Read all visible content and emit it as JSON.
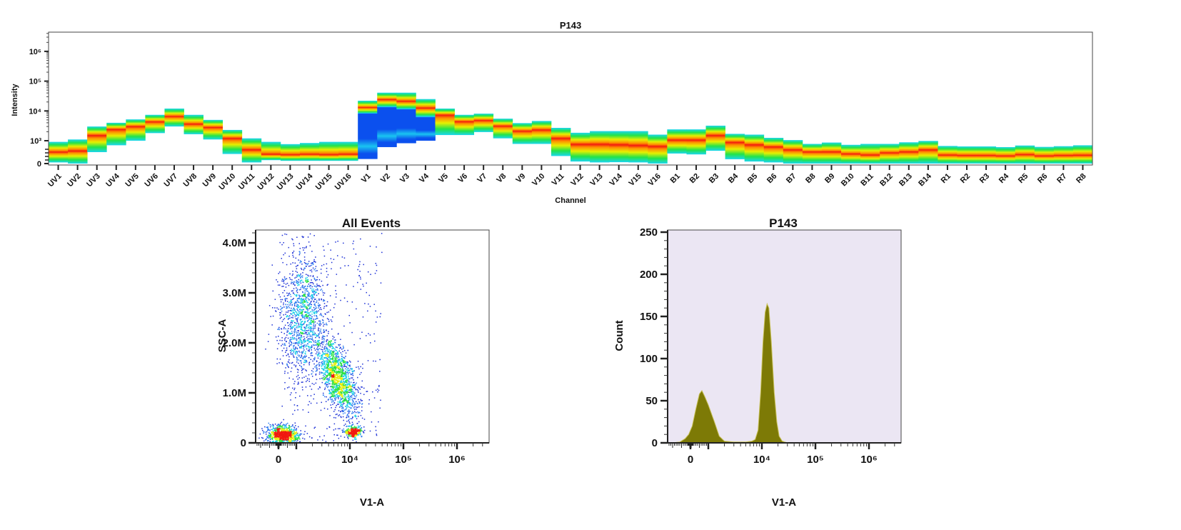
{
  "chart_data": [
    {
      "type": "heatmap",
      "title": "P143",
      "xlabel": "Channel",
      "ylabel": "Intensity",
      "y_scale": "biexponential",
      "y_ticks": [
        {
          "label": "0",
          "value": 0
        },
        {
          "label": "10³",
          "value": 1000
        },
        {
          "label": "10⁴",
          "value": 10000
        },
        {
          "label": "10⁵",
          "value": 100000
        },
        {
          "label": "10⁶",
          "value": 1000000
        }
      ],
      "colors": {
        "edge": "#1ad6f0",
        "green": "#22e34a",
        "yellow": "#e6f000",
        "orange": "#ff8c00",
        "red": "#f21a0f",
        "dim": "#0b50ee"
      },
      "channels": [
        {
          "name": "UV1",
          "min": 50,
          "peak": 500,
          "max": 950
        },
        {
          "name": "UV2",
          "min": 0,
          "peak": 550,
          "max": 1100
        },
        {
          "name": "UV3",
          "min": 500,
          "peak": 1500,
          "max": 3000
        },
        {
          "name": "UV4",
          "min": 800,
          "peak": 2400,
          "max": 4000
        },
        {
          "name": "UV5",
          "min": 1000,
          "peak": 3000,
          "max": 5200
        },
        {
          "name": "UV6",
          "min": 1800,
          "peak": 4300,
          "max": 7400
        },
        {
          "name": "UV7",
          "min": 3000,
          "peak": 6500,
          "max": 12000
        },
        {
          "name": "UV8",
          "min": 1650,
          "peak": 3600,
          "max": 7400
        },
        {
          "name": "UV9",
          "min": 1100,
          "peak": 2800,
          "max": 5000
        },
        {
          "name": "UV10",
          "min": 420,
          "peak": 1200,
          "max": 2300
        },
        {
          "name": "UV11",
          "min": 50,
          "peak": 600,
          "max": 1200
        },
        {
          "name": "UV12",
          "min": 150,
          "peak": 400,
          "max": 950
        },
        {
          "name": "UV13",
          "min": 120,
          "peak": 380,
          "max": 850
        },
        {
          "name": "UV14",
          "min": 120,
          "peak": 400,
          "max": 900
        },
        {
          "name": "UV15",
          "min": 120,
          "peak": 380,
          "max": 950
        },
        {
          "name": "UV16",
          "min": 120,
          "peak": 400,
          "max": 950
        },
        {
          "name": "V1",
          "min": 200,
          "peak": 13000,
          "max": 22000,
          "dim_below": 8000
        },
        {
          "name": "V2",
          "min": 720,
          "peak": 24000,
          "max": 41000,
          "dim_below": 13000
        },
        {
          "name": "V3",
          "min": 890,
          "peak": 21000,
          "max": 41000,
          "dim_below": 11000
        },
        {
          "name": "V4",
          "min": 1000,
          "peak": 12500,
          "max": 25000,
          "dim_below": 6000
        },
        {
          "name": "V5",
          "min": 1550,
          "peak": 7300,
          "max": 12000
        },
        {
          "name": "V6",
          "min": 1550,
          "peak": 4400,
          "max": 7400
        },
        {
          "name": "V7",
          "min": 1950,
          "peak": 4800,
          "max": 8100
        },
        {
          "name": "V8",
          "min": 1200,
          "peak": 3100,
          "max": 5500
        },
        {
          "name": "V9",
          "min": 860,
          "peak": 2100,
          "max": 3900
        },
        {
          "name": "V10",
          "min": 860,
          "peak": 2300,
          "max": 4600
        },
        {
          "name": "V11",
          "min": 330,
          "peak": 1200,
          "max": 2700
        },
        {
          "name": "V12",
          "min": 90,
          "peak": 840,
          "max": 1850
        },
        {
          "name": "V13",
          "min": 50,
          "peak": 840,
          "max": 2100
        },
        {
          "name": "V14",
          "min": 60,
          "peak": 820,
          "max": 2100
        },
        {
          "name": "V15",
          "min": 50,
          "peak": 790,
          "max": 2100
        },
        {
          "name": "V16",
          "min": 0,
          "peak": 750,
          "max": 1600
        },
        {
          "name": "B1",
          "min": 440,
          "peak": 1050,
          "max": 2400
        },
        {
          "name": "B2",
          "min": 400,
          "peak": 1050,
          "max": 2400
        },
        {
          "name": "B3",
          "min": 560,
          "peak": 1500,
          "max": 3200
        },
        {
          "name": "B4",
          "min": 190,
          "peak": 930,
          "max": 1700
        },
        {
          "name": "B5",
          "min": 90,
          "peak": 820,
          "max": 1600
        },
        {
          "name": "B6",
          "min": 50,
          "peak": 730,
          "max": 1250
        },
        {
          "name": "B7",
          "min": 0,
          "peak": 600,
          "max": 1050
        },
        {
          "name": "B8",
          "min": 0,
          "peak": 510,
          "max": 860
        },
        {
          "name": "B9",
          "min": 0,
          "peak": 510,
          "max": 920
        },
        {
          "name": "B10",
          "min": 0,
          "peak": 420,
          "max": 820
        },
        {
          "name": "B11",
          "min": 0,
          "peak": 370,
          "max": 860
        },
        {
          "name": "B12",
          "min": 0,
          "peak": 470,
          "max": 860
        },
        {
          "name": "B13",
          "min": 0,
          "peak": 510,
          "max": 930
        },
        {
          "name": "B14",
          "min": 0,
          "peak": 600,
          "max": 990
        },
        {
          "name": "R1",
          "min": 0,
          "peak": 370,
          "max": 770
        },
        {
          "name": "R2",
          "min": 0,
          "peak": 350,
          "max": 750
        },
        {
          "name": "R3",
          "min": 0,
          "peak": 350,
          "max": 750
        },
        {
          "name": "R4",
          "min": 0,
          "peak": 330,
          "max": 720
        },
        {
          "name": "R5",
          "min": 0,
          "peak": 390,
          "max": 790
        },
        {
          "name": "R6",
          "min": 0,
          "peak": 330,
          "max": 730
        },
        {
          "name": "R7",
          "min": 0,
          "peak": 350,
          "max": 760
        },
        {
          "name": "R8",
          "min": 0,
          "peak": 360,
          "max": 800
        }
      ]
    },
    {
      "type": "scatter",
      "title": "All Events",
      "xlabel": "V1-A",
      "ylabel": "SSC-A",
      "x_scale": "biexponential",
      "x_ticks": [
        {
          "label": "0",
          "value": 0
        },
        {
          "label": "10⁴",
          "value": 10000
        },
        {
          "label": "10⁵",
          "value": 100000
        },
        {
          "label": "10⁶",
          "value": 1000000
        }
      ],
      "y_ticks": [
        {
          "label": "0",
          "value": 0
        },
        {
          "label": "1.0M",
          "value": 1000000
        },
        {
          "label": "2.0M",
          "value": 2000000
        },
        {
          "label": "3.0M",
          "value": 3000000
        },
        {
          "label": "4.0M",
          "value": 4000000
        }
      ],
      "ylim": [
        0,
        4250000
      ],
      "color_scale": [
        "#1b2fd6",
        "#2f7df0",
        "#18d0e8",
        "#28e040",
        "#e8ee10",
        "#f01a10"
      ],
      "populations": [
        {
          "center": [
            250,
            150000
          ],
          "v1a_range": [
            -400,
            1300
          ],
          "ssc_range": [
            50000,
            450000
          ],
          "n": 900
        },
        {
          "center": [
            12000,
            220000
          ],
          "v1a_range": [
            8000,
            17000
          ],
          "ssc_range": [
            100000,
            340000
          ],
          "n": 320
        },
        {
          "center": [
            1300,
            2500000
          ],
          "v1a_range": [
            300,
            4000
          ],
          "ssc_range": [
            1200000,
            3700000
          ],
          "n": 1300
        },
        {
          "center": [
            6000,
            1300000
          ],
          "v1a_range": [
            2500,
            20000
          ],
          "ssc_range": [
            400000,
            2200000
          ],
          "n": 1500
        },
        {
          "center": [
            3000,
            1500000
          ],
          "v1a_range": [
            0,
            40000
          ],
          "ssc_range": [
            0,
            4200000
          ],
          "n": 320
        }
      ]
    },
    {
      "type": "area",
      "title": "P143",
      "xlabel": "V1-A",
      "ylabel": "Count",
      "x_scale": "biexponential",
      "ylim": [
        0,
        250
      ],
      "fill": "#7d7a06",
      "edge": "#c9c25a",
      "background": "#ebe6f3",
      "x_ticks": [
        {
          "label": "0",
          "value": 0
        },
        {
          "label": "10⁴",
          "value": 10000
        },
        {
          "label": "10⁵",
          "value": 100000
        },
        {
          "label": "10⁶",
          "value": 1000000
        }
      ],
      "y_ticks": [
        {
          "label": "0",
          "value": 0
        },
        {
          "label": "50",
          "value": 50
        },
        {
          "label": "100",
          "value": 100
        },
        {
          "label": "150",
          "value": 150
        },
        {
          "label": "200",
          "value": 200
        },
        {
          "label": "250",
          "value": 250
        }
      ],
      "points": [
        [
          -1000,
          0
        ],
        [
          -600,
          1
        ],
        [
          -300,
          5
        ],
        [
          -100,
          10
        ],
        [
          100,
          20
        ],
        [
          300,
          40
        ],
        [
          500,
          58
        ],
        [
          640,
          62
        ],
        [
          800,
          55
        ],
        [
          1000,
          45
        ],
        [
          1300,
          25
        ],
        [
          1600,
          8
        ],
        [
          2000,
          2
        ],
        [
          3000,
          1
        ],
        [
          4000,
          1
        ],
        [
          5000,
          1
        ],
        [
          6500,
          2
        ],
        [
          7500,
          4
        ],
        [
          8500,
          15
        ],
        [
          9500,
          60
        ],
        [
          10500,
          120
        ],
        [
          11500,
          155
        ],
        [
          12500,
          165
        ],
        [
          13500,
          160
        ],
        [
          15000,
          120
        ],
        [
          17000,
          60
        ],
        [
          19000,
          25
        ],
        [
          21000,
          8
        ],
        [
          24000,
          2
        ],
        [
          30000,
          0
        ],
        [
          4000000,
          0
        ]
      ]
    }
  ]
}
